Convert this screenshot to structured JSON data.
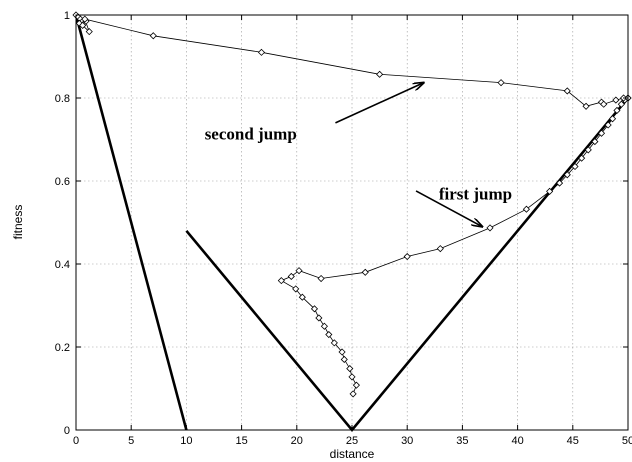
{
  "chart_data": {
    "type": "line",
    "title": "",
    "xlabel": "distance",
    "ylabel": "fitness",
    "xlim": [
      0,
      50
    ],
    "ylim": [
      0,
      1
    ],
    "xticks": [
      0,
      5,
      10,
      15,
      20,
      25,
      30,
      35,
      40,
      45,
      50
    ],
    "yticks": [
      0,
      0.2,
      0.4,
      0.6,
      0.8,
      1
    ],
    "xtick_labels": [
      "0",
      "5",
      "10",
      "15",
      "20",
      "25",
      "30",
      "35",
      "40",
      "45",
      "50"
    ],
    "ytick_labels": [
      "0",
      "0.2",
      "0.4",
      "0.6",
      "0.8",
      "1"
    ],
    "grid": true,
    "series": [
      {
        "style": "thick",
        "points": [
          [
            0,
            1
          ],
          [
            10,
            0
          ]
        ]
      },
      {
        "style": "thick",
        "points": [
          [
            10,
            0.48
          ],
          [
            25,
            0
          ],
          [
            50,
            0.8
          ]
        ]
      },
      {
        "style": "markers",
        "points": [
          [
            50,
            0.8
          ],
          [
            49.7,
            0.795
          ],
          [
            49.4,
            0.785
          ],
          [
            49.0,
            0.77
          ],
          [
            48.6,
            0.75
          ],
          [
            48.2,
            0.735
          ],
          [
            47.6,
            0.715
          ],
          [
            47.0,
            0.695
          ],
          [
            46.4,
            0.675
          ],
          [
            45.8,
            0.655
          ],
          [
            45.2,
            0.635
          ],
          [
            44.5,
            0.615
          ],
          [
            43.8,
            0.595
          ],
          [
            42.9,
            0.575
          ],
          [
            40.8,
            0.532
          ],
          [
            37.5,
            0.487
          ],
          [
            33.0,
            0.437
          ],
          [
            30.0,
            0.418
          ],
          [
            26.2,
            0.38
          ],
          [
            22.2,
            0.365
          ],
          [
            20.2,
            0.384
          ],
          [
            19.5,
            0.37
          ],
          [
            18.6,
            0.36
          ],
          [
            19.9,
            0.34
          ],
          [
            20.5,
            0.32
          ],
          [
            21.6,
            0.292
          ],
          [
            22.0,
            0.27
          ],
          [
            22.5,
            0.25
          ],
          [
            22.9,
            0.23
          ],
          [
            23.4,
            0.21
          ],
          [
            24.1,
            0.188
          ],
          [
            24.3,
            0.17
          ],
          [
            24.8,
            0.148
          ],
          [
            25.0,
            0.128
          ],
          [
            25.4,
            0.108
          ],
          [
            25.1,
            0.087
          ]
        ]
      },
      {
        "style": "markers",
        "points": [
          [
            0,
            1
          ],
          [
            0.2,
            0.995
          ],
          [
            0.4,
            0.99
          ],
          [
            0.6,
            0.985
          ],
          [
            0.9,
            0.985
          ],
          [
            0.3,
            0.98
          ],
          [
            0.6,
            0.975
          ],
          [
            1.2,
            0.96
          ],
          [
            0.8,
            0.99
          ],
          [
            7.0,
            0.95
          ],
          [
            16.8,
            0.91
          ],
          [
            27.5,
            0.857
          ],
          [
            38.5,
            0.837
          ],
          [
            44.5,
            0.817
          ],
          [
            46.2,
            0.78
          ],
          [
            47.6,
            0.79
          ],
          [
            47.8,
            0.785
          ],
          [
            48.9,
            0.795
          ],
          [
            49.6,
            0.8
          ],
          [
            50,
            0.8
          ]
        ]
      }
    ],
    "annotations": [
      {
        "text": "second jump",
        "text_at": [
          20.0,
          0.7
        ],
        "arrow_from": [
          23.5,
          0.74
        ],
        "arrow_to": [
          31.5,
          0.837
        ]
      },
      {
        "text": "first jump",
        "text_at": [
          39.5,
          0.555
        ],
        "arrow_from": [
          30.8,
          0.576
        ],
        "arrow_to": [
          36.8,
          0.49
        ]
      }
    ]
  }
}
